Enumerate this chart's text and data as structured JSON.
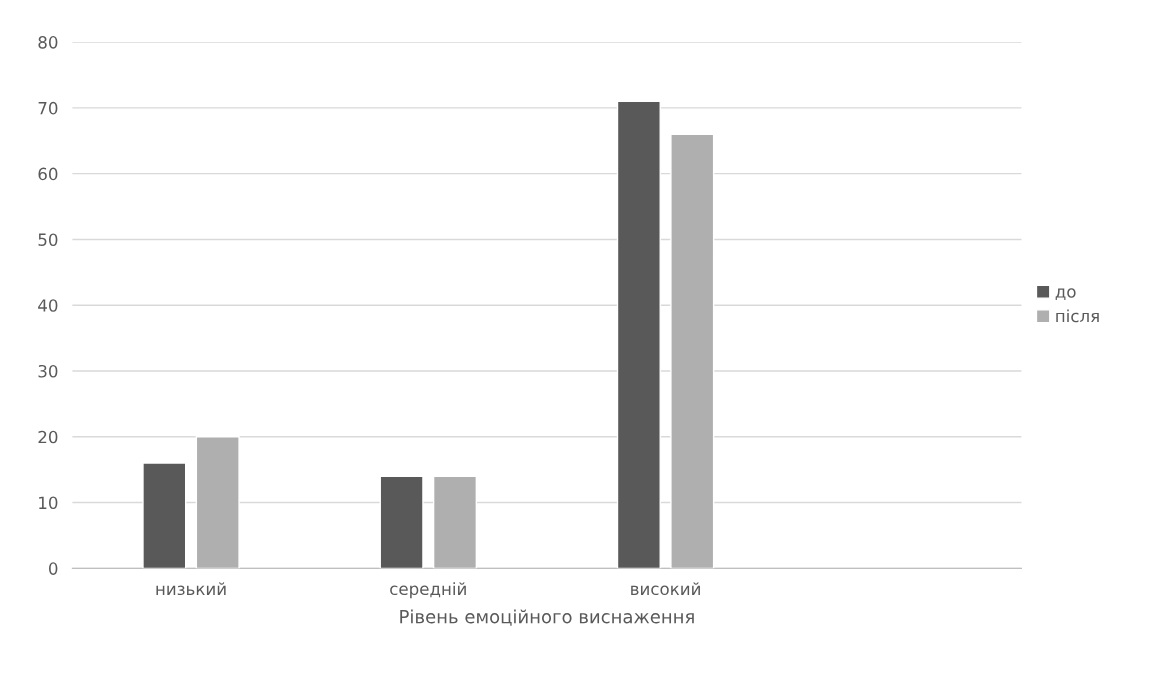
{
  "chart_data": {
    "type": "bar",
    "xlabel": "Рівень емоційного виснаження",
    "categories": [
      "низький",
      "середній",
      "високий",
      null
    ],
    "series": [
      {
        "name": "до",
        "color": "#595959",
        "values": [
          16,
          14,
          71,
          null
        ]
      },
      {
        "name": "після",
        "color": "#afafaf",
        "values": [
          20,
          14,
          66,
          null
        ]
      }
    ],
    "ylim": [
      0,
      80
    ],
    "yticks": [
      0,
      10,
      20,
      30,
      40,
      50,
      60,
      70,
      80
    ],
    "grid": "y",
    "legend": "right"
  }
}
